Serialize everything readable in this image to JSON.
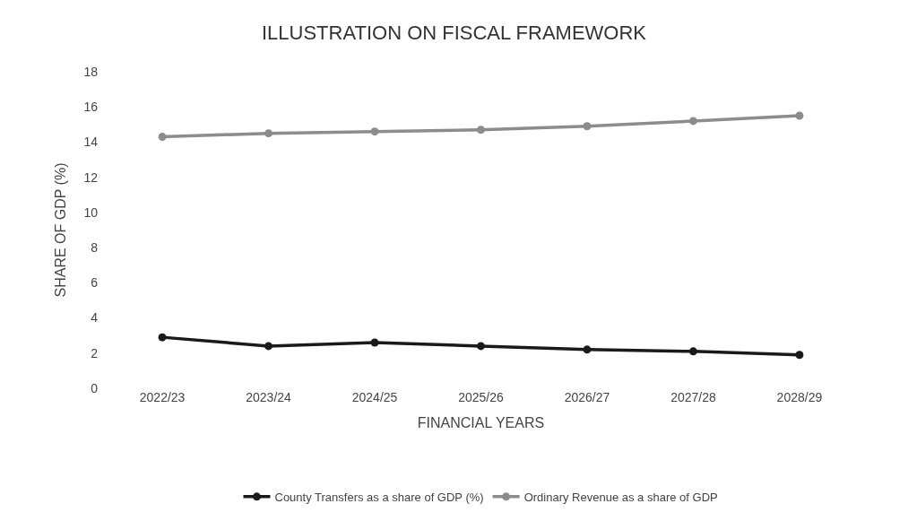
{
  "chart_data": {
    "type": "line",
    "title": "ILLUSTRATION ON FISCAL FRAMEWORK",
    "xlabel": "FINANCIAL YEARS",
    "ylabel": "SHARE OF GDP (%)",
    "categories": [
      "2022/23",
      "2023/24",
      "2024/25",
      "2025/26",
      "2026/27",
      "2027/28",
      "2028/29"
    ],
    "series": [
      {
        "name": "County Transfers as a share of GDP (%)",
        "color": "#1a1a1a",
        "values": [
          2.9,
          2.4,
          2.6,
          2.4,
          2.2,
          2.1,
          1.9
        ]
      },
      {
        "name": "Ordinary Revenue as a share of GDP",
        "color": "#8c8c8c",
        "values": [
          14.3,
          14.5,
          14.6,
          14.7,
          14.9,
          15.2,
          15.5
        ]
      }
    ],
    "ylim": [
      0,
      18
    ],
    "yticks": [
      0,
      2,
      4,
      6,
      8,
      10,
      12,
      14,
      16,
      18
    ],
    "legend": "bottom",
    "marker": "circle",
    "line_style": "solid"
  }
}
